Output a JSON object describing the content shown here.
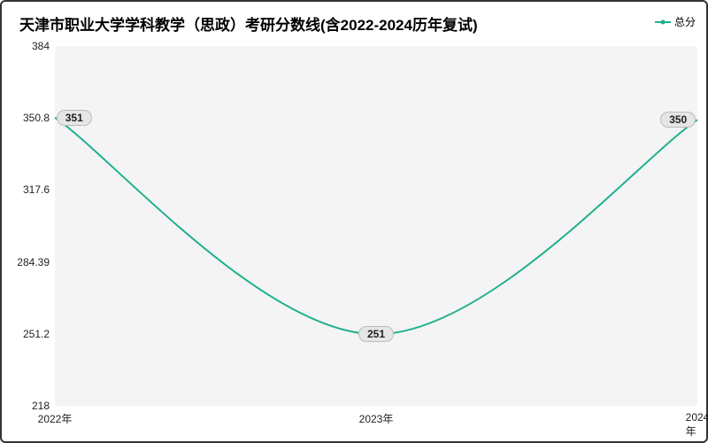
{
  "chart": {
    "type": "line",
    "title": "天津市职业大学学科教学（思政）考研分数线(含2022-2024历年复试)",
    "title_fontsize": 17,
    "title_color": "#000000",
    "background_color": "#ffffff",
    "plot_background_color": "#f4f4f4",
    "border_color": "#333333",
    "line_color": "#1fb090",
    "line_width": 2,
    "marker_color": "#1fb090",
    "label_bg_color": "#e6e6e6",
    "label_border_color": "#bbbbbb",
    "label_text_color": "#222222",
    "axis_text_color": "#222222",
    "axis_fontsize": 12,
    "legend": {
      "label": "总分",
      "position": "top-right"
    },
    "x_categories": [
      "2022年",
      "2023年",
      "2024年"
    ],
    "y_ticks": [
      218,
      251.2,
      284.39,
      317.6,
      350.8,
      384
    ],
    "ylim": [
      218,
      384
    ],
    "data_points": [
      {
        "x": "2022年",
        "y": 351,
        "label": "351"
      },
      {
        "x": "2023年",
        "y": 251,
        "label": "251"
      },
      {
        "x": "2024年",
        "y": 350,
        "label": "350"
      }
    ]
  }
}
